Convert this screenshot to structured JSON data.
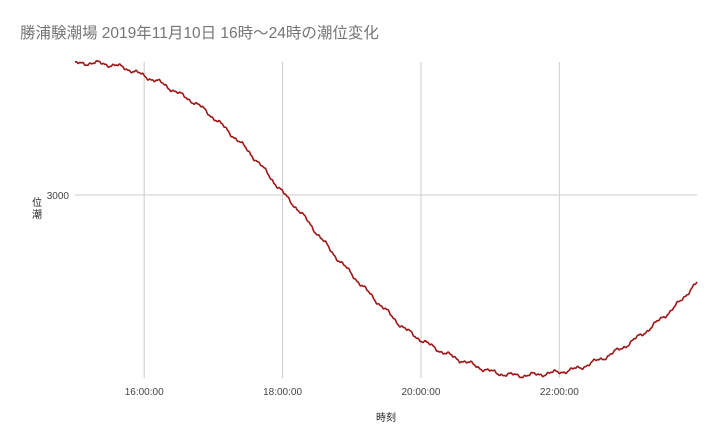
{
  "title": "勝浦験潮場 2019年11月10日 16時〜24時の潮位変化",
  "chart_data": {
    "type": "line",
    "title": "勝浦験潮場 2019年11月10日 16時〜24時の潮位変化",
    "xlabel": "時刻",
    "ylabel": "潮位",
    "x_unit": "hours",
    "xlim": [
      15.0,
      23.99
    ],
    "x_ticks": [
      {
        "value": 16,
        "label": "16:00:00"
      },
      {
        "value": 18,
        "label": "18:00:00"
      },
      {
        "value": 20,
        "label": "20:00:00"
      },
      {
        "value": 22,
        "label": "22:00:00"
      }
    ],
    "y_ticks": [
      {
        "value": 3000,
        "label": "3000"
      }
    ],
    "ylim": [
      2450,
      3400
    ],
    "grid": true,
    "legend": "none",
    "series": [
      {
        "color": "#9e1616",
        "x": [
          15.0,
          15.25,
          15.5,
          15.75,
          16.0,
          16.25,
          16.5,
          16.75,
          17.0,
          17.25,
          17.5,
          17.75,
          18.0,
          18.25,
          18.5,
          18.75,
          19.0,
          19.25,
          19.5,
          19.75,
          20.0,
          20.25,
          20.5,
          20.75,
          21.0,
          21.25,
          21.5,
          21.75,
          22.0,
          22.25,
          22.5,
          22.75,
          23.0,
          23.25,
          23.5,
          23.75,
          23.99
        ],
        "y": [
          3394,
          3397,
          3392,
          3380,
          3358,
          3336,
          3305,
          3275,
          3233,
          3185,
          3133,
          3073,
          3008,
          2950,
          2885,
          2820,
          2762,
          2705,
          2652,
          2601,
          2565,
          2535,
          2510,
          2490,
          2470,
          2460,
          2458,
          2462,
          2468,
          2478,
          2498,
          2522,
          2553,
          2590,
          2633,
          2680,
          2735
        ]
      }
    ]
  }
}
